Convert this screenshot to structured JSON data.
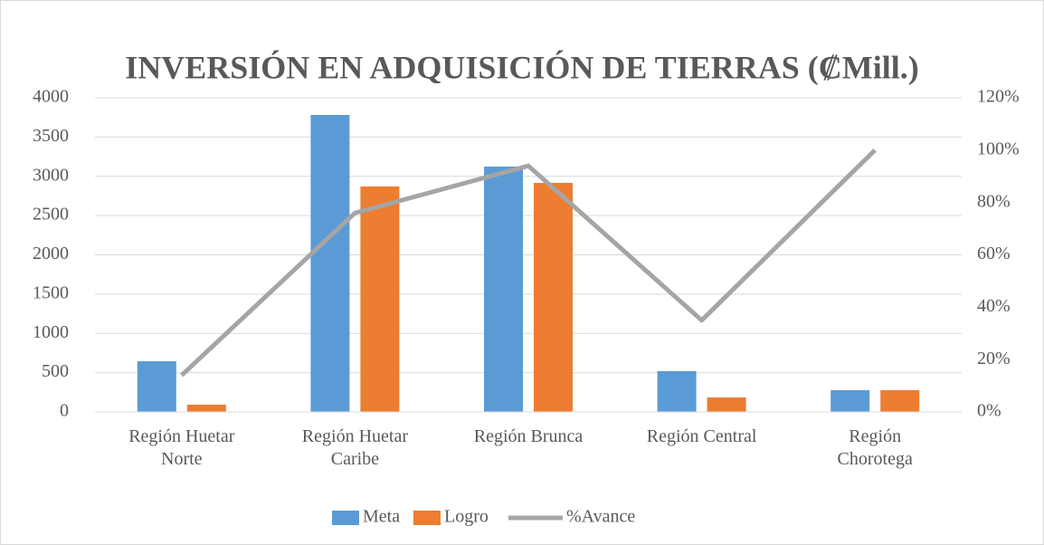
{
  "chart_data": {
    "type": "bar",
    "title": "INVERSIÓN EN ADQUISICIÓN DE TIERRAS (₡Mill.)",
    "categories": [
      "Región Huetar Norte",
      "Región Huetar Caribe",
      "Región Brunca",
      "Región Central",
      "Región Chorotega"
    ],
    "series": [
      {
        "name": "Meta",
        "color": "#5b9bd5",
        "type": "bar",
        "values": [
          645,
          3781,
          3124,
          519,
          277
        ]
      },
      {
        "name": "Logro",
        "color": "#ed7d31",
        "type": "bar",
        "values": [
          92,
          2870,
          2916,
          184,
          277
        ]
      },
      {
        "name": "%Avance",
        "color": "#a5a5a5",
        "type": "line",
        "axis": "y2",
        "values": [
          14,
          76,
          94,
          35,
          100
        ]
      }
    ],
    "ylim": [
      0,
      4000
    ],
    "yticks": [
      0,
      500,
      1000,
      1500,
      2000,
      2500,
      3000,
      3500,
      4000
    ],
    "y2lim": [
      0,
      120
    ],
    "y2ticks": [
      {
        "value": 0,
        "label": "0%"
      },
      {
        "value": 20,
        "label": "20%"
      },
      {
        "value": 40,
        "label": "40%"
      },
      {
        "value": 60,
        "label": "60%"
      },
      {
        "value": 80,
        "label": "80%"
      },
      {
        "value": 100,
        "label": "100%"
      },
      {
        "value": 120,
        "label": "120%"
      }
    ],
    "grid": true,
    "legend": "bottom"
  }
}
